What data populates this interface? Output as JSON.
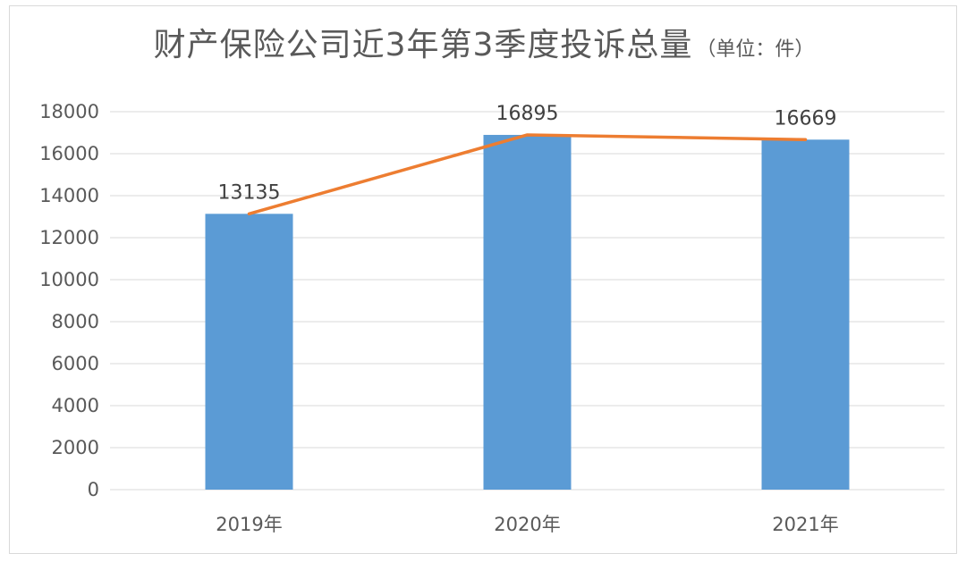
{
  "chart_data": {
    "type": "bar",
    "title": "财产保险公司近3年第3季度投诉总量",
    "subtitle": "（单位：件）",
    "categories": [
      "2019年",
      "2020年",
      "2021年"
    ],
    "series": [
      {
        "type": "bar",
        "values": [
          13135,
          16895,
          16669
        ],
        "color": "#5b9bd5"
      },
      {
        "type": "line",
        "values": [
          13135,
          16895,
          16669
        ],
        "color": "#ed7d31"
      }
    ],
    "data_labels": [
      "13135",
      "16895",
      "16669"
    ],
    "ylim": [
      0,
      18000
    ],
    "yticks": [
      0,
      2000,
      4000,
      6000,
      8000,
      10000,
      12000,
      14000,
      16000,
      18000
    ],
    "grid": true,
    "legend": "none"
  }
}
